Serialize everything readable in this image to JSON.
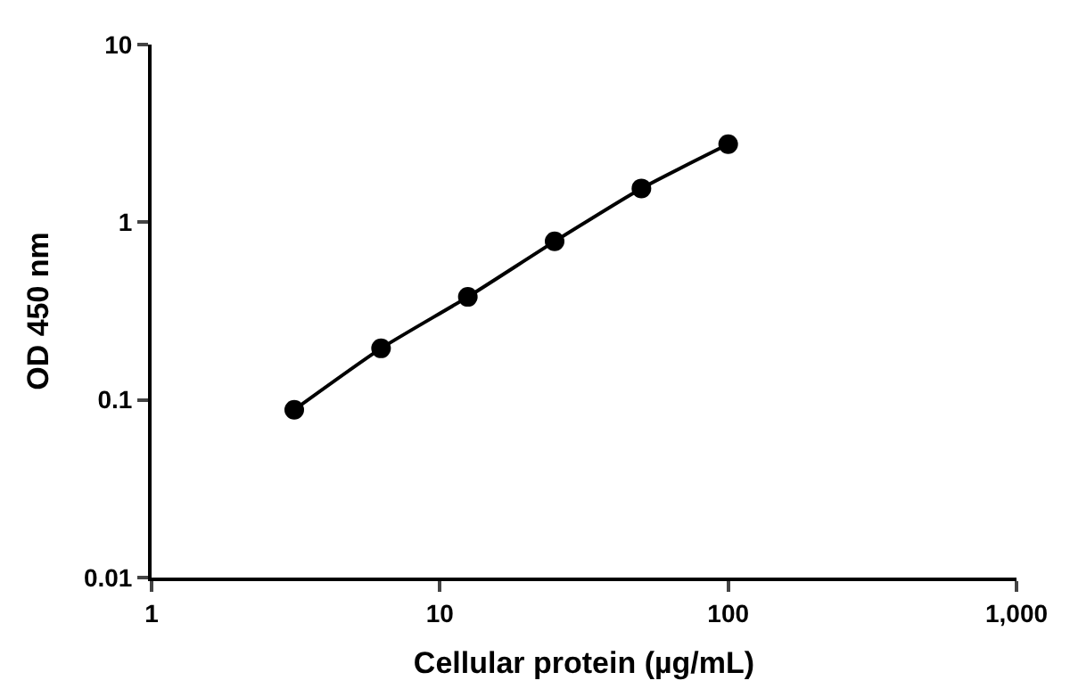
{
  "chart_data": {
    "type": "scatter",
    "xlabel": "Cellular protein (µg/mL)",
    "ylabel": "OD 450 nm",
    "log": "xy",
    "grid": false,
    "legend": false,
    "xlim": [
      1,
      1000
    ],
    "xticks": [
      1,
      10,
      100,
      {
        "value": 1000,
        "label": "1,000"
      }
    ],
    "ylim": [
      0.01,
      10
    ],
    "yticks": [
      0.01,
      0.1,
      1,
      10
    ],
    "series": [
      {
        "type": "line",
        "color": "#000000",
        "marker": "none",
        "line_style": "solid",
        "x": [
          3.125,
          6.25,
          12.5,
          25,
          50,
          100
        ],
        "values": [
          0.088,
          0.195,
          0.38,
          0.78,
          1.55,
          2.75
        ]
      },
      {
        "color": "#000000",
        "marker": "circle",
        "x": [
          3.125,
          6.25,
          12.5,
          25,
          50,
          100
        ],
        "values": [
          0.088,
          0.195,
          0.38,
          0.78,
          1.55,
          2.75
        ]
      }
    ]
  }
}
